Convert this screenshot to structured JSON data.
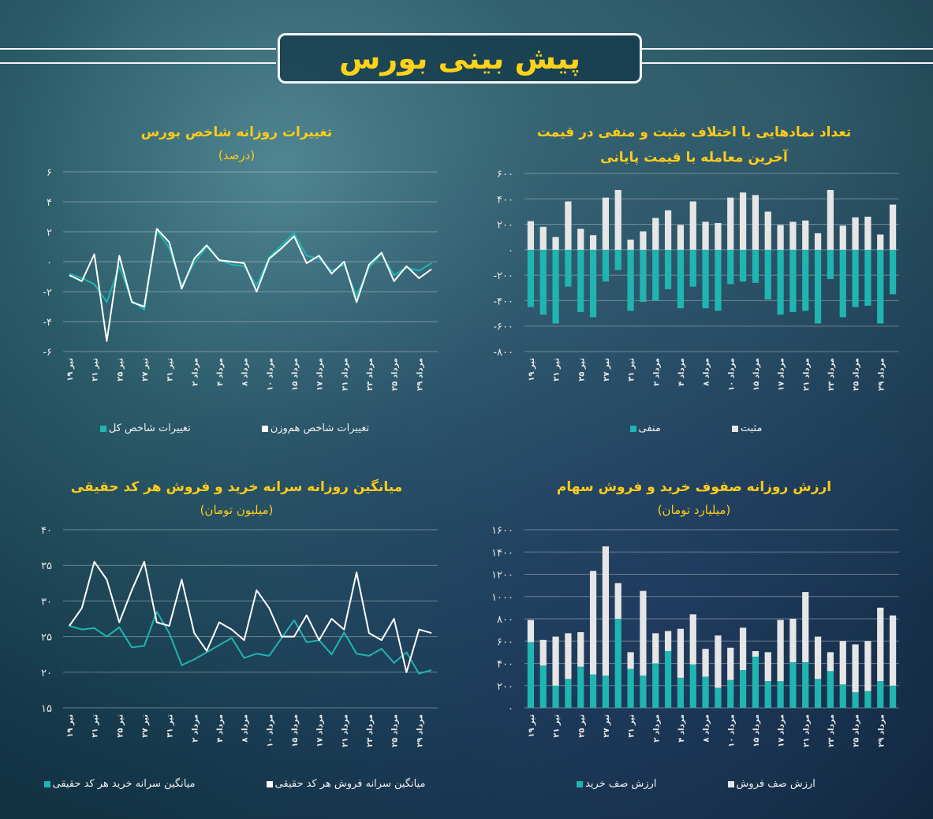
{
  "header": {
    "title": "پیش بینی بورس"
  },
  "chart_data": [
    {
      "type": "bar",
      "stacked": true,
      "title": "تعداد نمادهایی با اختلاف مثبت و منفی در قیمت آخرین معامله با قیمت پایانی",
      "categories": [
        "۱۹ تیر",
        null,
        "۲۱ تیر",
        null,
        "۲۵ تیر",
        null,
        "۲۷ تیر",
        null,
        "۳۱ تیر",
        null,
        "۲ مرداد",
        null,
        "۴ مرداد",
        null,
        "۸ مرداد",
        null,
        "۱۰ مرداد",
        null,
        "۱۵ مرداد",
        null,
        "۱۷ مرداد",
        null,
        "۲۱ مرداد",
        null,
        "۲۳ مرداد",
        null,
        "۲۵ مرداد",
        null,
        "۲۹ مرداد",
        null
      ],
      "series": [
        {
          "name": "منفی",
          "color": "#1fb5b0",
          "values": [
            -450,
            -510,
            -580,
            -290,
            -490,
            -530,
            -250,
            -160,
            -480,
            -410,
            -400,
            -310,
            -460,
            -290,
            -460,
            -480,
            -270,
            -250,
            -260,
            -390,
            -510,
            -490,
            -480,
            -580,
            -230,
            -530,
            -450,
            -440,
            -580,
            -350
          ]
        },
        {
          "name": "مثبت",
          "color": "#e6e6e6",
          "values": [
            225,
            180,
            100,
            380,
            165,
            115,
            410,
            470,
            80,
            145,
            250,
            310,
            195,
            380,
            220,
            210,
            410,
            450,
            430,
            300,
            195,
            220,
            230,
            130,
            470,
            190,
            255,
            260,
            120,
            355
          ]
        }
      ],
      "ylim": [
        -800,
        600
      ],
      "yticks": [
        {
          "value": -800,
          "label": "-۸۰۰"
        },
        {
          "value": -600,
          "label": "-۶۰۰"
        },
        {
          "value": -400,
          "label": "-۴۰۰"
        },
        {
          "value": -200,
          "label": "-۲۰۰"
        },
        {
          "value": 0,
          "label": "۰"
        },
        {
          "value": 200,
          "label": "۲۰۰"
        },
        {
          "value": 400,
          "label": "۴۰۰"
        },
        {
          "value": 600,
          "label": "۶۰۰"
        }
      ],
      "grid": true
    },
    {
      "type": "line",
      "title": "تغییرات روزانه شاخص بورس",
      "subtitle": "(درصد)",
      "categories": [
        "۱۹ تیر",
        null,
        "۲۱ تیر",
        null,
        "۲۵ تیر",
        null,
        "۲۷ تیر",
        null,
        "۳۱ تیر",
        null,
        "۲ مرداد",
        null,
        "۴ مرداد",
        null,
        "۸ مرداد",
        null,
        "۱۰ مرداد",
        null,
        "۱۵ مرداد",
        null,
        "۱۷ مرداد",
        null,
        "۲۱ مرداد",
        null,
        "۲۳ مرداد",
        null,
        "۲۵ مرداد",
        null,
        "۲۹ مرداد",
        null
      ],
      "series": [
        {
          "name": "تغییرات شاخص کل",
          "color": "#1fb5b0",
          "values": [
            -0.8,
            -1.1,
            -1.5,
            -2.7,
            -0.3,
            -2.6,
            -3.2,
            2.1,
            0.9,
            -1.6,
            -0.1,
            1.0,
            0.1,
            -0.2,
            -0.3,
            -1.6,
            0.3,
            1.1,
            1.9,
            0.4,
            0.2,
            -0.6,
            -0.2,
            -2.3,
            -0.4,
            0.5,
            -0.9,
            -0.4,
            -0.6,
            -0.1
          ]
        },
        {
          "name": "تغییرات شاخص هم‌وزن",
          "color": "#ffffff",
          "values": [
            -0.9,
            -1.3,
            0.5,
            -5.3,
            0.4,
            -2.7,
            -3.0,
            2.2,
            1.3,
            -1.8,
            0.2,
            1.1,
            0.1,
            0,
            -0.1,
            -2.0,
            0.2,
            0.9,
            1.7,
            -0.1,
            0.4,
            -0.8,
            0,
            -2.7,
            -0.2,
            0.6,
            -1.3,
            -0.3,
            -1.1,
            -0.5
          ]
        }
      ],
      "ylim": [
        -6,
        6
      ],
      "yticks": [
        {
          "value": -6,
          "label": "-۶"
        },
        {
          "value": -4,
          "label": "-۴"
        },
        {
          "value": -2,
          "label": "-۲"
        },
        {
          "value": 0,
          "label": "۰"
        },
        {
          "value": 2,
          "label": "۲"
        },
        {
          "value": 4,
          "label": "۴"
        },
        {
          "value": 6,
          "label": "۶"
        }
      ],
      "grid": true
    },
    {
      "type": "bar",
      "stacked": true,
      "title": "ارزش روزانه صفوف خرید و فروش سهام",
      "subtitle": "(میلیارد تومان)",
      "categories": [
        "۱۹ تیر",
        null,
        "۲۱ تیر",
        null,
        "۲۵ تیر",
        null,
        "۲۷ تیر",
        null,
        "۳۱ تیر",
        null,
        "۲ مرداد",
        null,
        "۴ مرداد",
        null,
        "۸ مرداد",
        null,
        "۱۰ مرداد",
        null,
        "۱۵ مرداد",
        null,
        "۱۷ مرداد",
        null,
        "۲۱ مرداد",
        null,
        "۲۳ مرداد",
        null,
        "۲۵ مرداد",
        null,
        "۲۹ مرداد",
        null
      ],
      "series": [
        {
          "name": "ارزش صف خرید",
          "color": "#1fb5b0",
          "values": [
            590,
            380,
            200,
            260,
            370,
            300,
            290,
            800,
            350,
            290,
            400,
            510,
            270,
            390,
            280,
            180,
            250,
            340,
            460,
            240,
            240,
            410,
            410,
            260,
            330,
            210,
            140,
            150,
            240,
            200
          ]
        },
        {
          "name": "ارزش صف فروش",
          "color": "#e6e6e6",
          "values": [
            200,
            230,
            440,
            410,
            310,
            930,
            1160,
            320,
            150,
            760,
            270,
            180,
            440,
            450,
            250,
            470,
            290,
            380,
            50,
            260,
            550,
            390,
            630,
            380,
            170,
            390,
            430,
            450,
            660,
            630
          ]
        }
      ],
      "ylim": [
        0,
        1600
      ],
      "yticks": [
        {
          "value": 0,
          "label": "۰"
        },
        {
          "value": 200,
          "label": "۲۰۰"
        },
        {
          "value": 400,
          "label": "۴۰۰"
        },
        {
          "value": 600,
          "label": "۶۰۰"
        },
        {
          "value": 800,
          "label": "۸۰۰"
        },
        {
          "value": 1000,
          "label": "۱۰۰۰"
        },
        {
          "value": 1200,
          "label": "۱۲۰۰"
        },
        {
          "value": 1400,
          "label": "۱۴۰۰"
        },
        {
          "value": 1600,
          "label": "۱۶۰۰"
        }
      ],
      "grid": true
    },
    {
      "type": "line",
      "title": "میانگین روزانه سرانه خرید و فروش هر کد حقیقی",
      "subtitle": "(میلیون تومان)",
      "categories": [
        "۱۹ تیر",
        null,
        "۲۱ تیر",
        null,
        "۲۵ تیر",
        null,
        "۲۷ تیر",
        null,
        "۳۱ تیر",
        null,
        "۲ مرداد",
        null,
        "۴ مرداد",
        null,
        "۸ مرداد",
        null,
        "۱۰ مرداد",
        null,
        "۱۵ مرداد",
        null,
        "۱۷ مرداد",
        null,
        "۲۱ مرداد",
        null,
        "۲۳ مرداد",
        null,
        "۲۵ مرداد",
        null,
        "۲۹ مرداد",
        null
      ],
      "series": [
        {
          "name": "میانگین سرانه خرید هر کد حقیقی",
          "color": "#1fb5b0",
          "values": [
            26.5,
            26,
            26.2,
            25,
            26.3,
            23.5,
            23.7,
            28.5,
            25.5,
            21,
            21.8,
            22.8,
            23.8,
            24.8,
            22,
            22.6,
            22.3,
            24.8,
            27.3,
            24.2,
            24.5,
            22.5,
            25.6,
            22.6,
            22.3,
            23.3,
            21.3,
            22.8,
            19.8,
            20.3
          ]
        },
        {
          "name": "میانگین سرانه فروش هر کد حقیقی",
          "color": "#ffffff",
          "values": [
            26.5,
            29,
            35.5,
            33,
            27,
            31.5,
            35.5,
            27,
            26.5,
            33,
            25.5,
            23,
            27,
            26,
            24.5,
            31.5,
            29,
            25,
            25,
            28,
            24.5,
            27.5,
            26,
            34,
            25.5,
            24.5,
            27.5,
            20,
            26,
            25.5
          ]
        }
      ],
      "ylim": [
        15,
        40
      ],
      "yticks": [
        {
          "value": 15,
          "label": "۱۵"
        },
        {
          "value": 20,
          "label": "۲۰"
        },
        {
          "value": 25,
          "label": "۲۵"
        },
        {
          "value": 30,
          "label": "۳۰"
        },
        {
          "value": 35,
          "label": "۳۵"
        },
        {
          "value": 40,
          "label": "۴۰"
        }
      ],
      "grid": true
    }
  ]
}
